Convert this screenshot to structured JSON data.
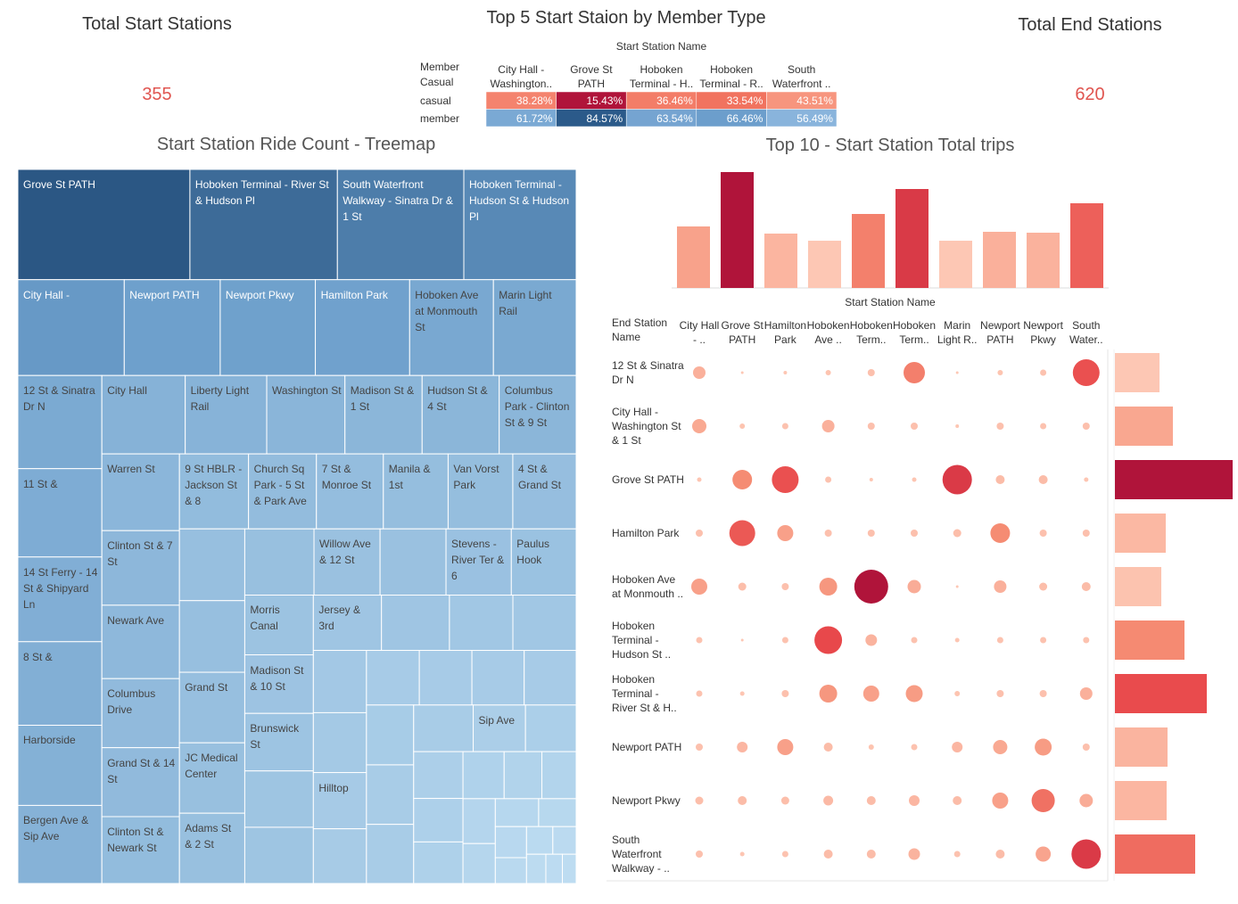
{
  "kpis": [
    {
      "title": "Total Start Stations",
      "value": 355
    },
    {
      "title": "Total End Stations",
      "value": 620
    }
  ],
  "chart_data": [
    {
      "type": "highlight_table",
      "title": "Top 5 Start Staion by Member Type",
      "column_header": "Start Station Name",
      "row_header": [
        "Member",
        "Casual"
      ],
      "columns": [
        "City Hall - Washington..",
        "Grove St PATH",
        "Hoboken Terminal - H..",
        "Hoboken Terminal - R..",
        "South Waterfront .."
      ],
      "rows": [
        "casual",
        "member"
      ],
      "values": [
        [
          38.28,
          15.43,
          36.46,
          33.54,
          43.51
        ],
        [
          61.72,
          84.57,
          63.54,
          66.46,
          56.49
        ]
      ],
      "value_labels": [
        [
          "38.28%",
          "15.43%",
          "36.46%",
          "33.54%",
          "43.51%"
        ],
        [
          "61.72%",
          "84.57%",
          "63.54%",
          "66.46%",
          "56.49%"
        ]
      ],
      "center": 50,
      "negative_colors": [
        "#fcab93",
        "#f0705c",
        "#b0143a"
      ],
      "positive_colors": [
        "#9cc3e6",
        "#6a9ccb",
        "#2b5a8a"
      ]
    },
    {
      "type": "treemap",
      "title": "Start Station Ride Count - Treemap",
      "labels": [
        "Grove St PATH",
        "Hoboken Terminal - River St & Hudson Pl",
        "South Waterfront Walkway - Sinatra Dr & 1 St",
        "Hoboken Terminal - Hudson St & Hudson Pl",
        "City Hall -",
        "Newport PATH",
        "Newport Pkwy",
        "Hamilton Park",
        "Hoboken Ave at Monmouth St",
        "Marin Light Rail",
        "12 St & Sinatra Dr N",
        "11 St &",
        "14 St Ferry - 14 St & Shipyard Ln",
        "8 St &",
        "Harborside",
        "Bergen Ave & Sip Ave",
        "City Hall",
        "Liberty Light Rail",
        "Washington St",
        "Madison St & 1 St",
        "Hudson St & 4 St",
        "Columbus Park - Clinton St & 9 St",
        "Warren St",
        "Clinton St & 7 St",
        "Newark Ave",
        "Columbus Drive",
        "Grand St & 14 St",
        "Clinton St & Newark St",
        "9 St HBLR - Jackson St & 8",
        "Church Sq Park - 5 St & Park Ave",
        "7 St & Monroe St",
        "Manila & 1st",
        "Van Vorst Park",
        "4 St & Grand St",
        null,
        null,
        "Grand St",
        "JC Medical Center",
        "Adams St & 2 St",
        null,
        "Willow Ave & 12 St",
        null,
        "Stevens - River Ter & 6",
        "Paulus Hook",
        "Morris Canal",
        "Madison St & 10 St",
        "Brunswick St",
        null,
        null,
        "Jersey & 3rd",
        null,
        null,
        null,
        null,
        null,
        "Hilltop",
        null,
        null,
        null,
        null,
        null,
        null,
        null,
        null,
        null,
        "Sip Ave",
        null,
        null,
        null,
        null,
        null,
        null,
        null,
        null,
        null,
        null,
        null,
        null,
        null,
        null,
        null,
        null,
        null,
        null
      ],
      "values": [
        23520,
        20160,
        17280,
        15360,
        12640,
        11400,
        11300,
        11200,
        9950,
        9830,
        9700,
        9200,
        8820,
        8700,
        8350,
        8130,
        8100,
        7920,
        7600,
        7500,
        7490,
        7480,
        7380,
        7170,
        7060,
        6640,
        6630,
        6430,
        6420,
        6310,
        6220,
        6020,
        6010,
        5890,
        5810,
        5800,
        5710,
        5700,
        5690,
        5680,
        5420,
        5410,
        5360,
        5320,
        5080,
        4980,
        4890,
        4790,
        4780,
        4670,
        4660,
        4350,
        4340,
        4100,
        3940,
        3700,
        3600,
        3580,
        3560,
        3540,
        3520,
        3500,
        3480,
        3460,
        3440,
        3020,
        2930,
        2860,
        2660,
        2540,
        2400,
        2200,
        2000,
        1800,
        1600,
        1500,
        1300,
        1200,
        1000,
        900,
        800,
        700,
        600,
        500
      ],
      "color_range": [
        "#bddcf1",
        "#6a9dca",
        "#2b5784"
      ]
    },
    {
      "type": "bar",
      "title": "Top 10 - Start Station Total trips",
      "x_label": "Start Station Name",
      "categories": [
        null,
        null,
        null,
        null,
        null,
        null,
        null,
        null,
        null,
        null
      ],
      "values": [
        69,
        130,
        61,
        53,
        83,
        111,
        53,
        63,
        62,
        95
      ],
      "ylim": [
        0,
        133
      ],
      "color_range": [
        "#fdc7b4",
        "#f58c73",
        "#e8474b",
        "#b0143a"
      ]
    },
    {
      "type": "bubble_matrix",
      "row_header": "End Station Name",
      "columns": [
        "City Hall - ..",
        "Grove St PATH",
        "Hamilton Park",
        "Hoboken Ave ..",
        "Hoboken Term..",
        "Hoboken Term..",
        "Marin Light R..",
        "Newport PATH",
        "Newport Pkwy",
        "South Water.."
      ],
      "rows": [
        "12 St & Sinatra Dr N",
        "City Hall - Washington St & 1 St",
        "Grove St PATH",
        "Hamilton Park",
        "Hoboken Ave at Monmouth ..",
        "Hoboken Terminal - Hudson St ..",
        "Hoboken Terminal - River St & H..",
        "Newport PATH",
        "Newport Pkwy",
        "South Waterfront Walkway - .."
      ],
      "sizes": [
        [
          196,
          9,
          16,
          36,
          64,
          576,
          9,
          36,
          49,
          900
        ],
        [
          256,
          36,
          49,
          196,
          64,
          64,
          16,
          64,
          49,
          64
        ],
        [
          25,
          484,
          900,
          49,
          16,
          25,
          1089,
          100,
          100,
          25
        ],
        [
          64,
          841,
          324,
          64,
          64,
          64,
          81,
          484,
          64,
          64
        ],
        [
          324,
          81,
          64,
          400,
          1444,
          225,
          9,
          196,
          81,
          100
        ],
        [
          49,
          9,
          49,
          961,
          169,
          49,
          25,
          49,
          49,
          49
        ],
        [
          49,
          25,
          64,
          400,
          324,
          361,
          36,
          64,
          64,
          196
        ],
        [
          64,
          144,
          324,
          100,
          36,
          49,
          144,
          256,
          361,
          64
        ],
        [
          81,
          100,
          81,
          121,
          100,
          144,
          100,
          324,
          676,
          225
        ],
        [
          64,
          25,
          49,
          100,
          100,
          169,
          49,
          100,
          289,
          1089
        ]
      ],
      "row_totals": [
        50,
        65,
        132,
        57,
        52,
        78,
        103,
        59,
        58,
        90
      ],
      "xlim": [
        0,
        136
      ],
      "color_range": [
        "#fdc7b4",
        "#f58c73",
        "#e8474b",
        "#b0143a"
      ]
    }
  ]
}
